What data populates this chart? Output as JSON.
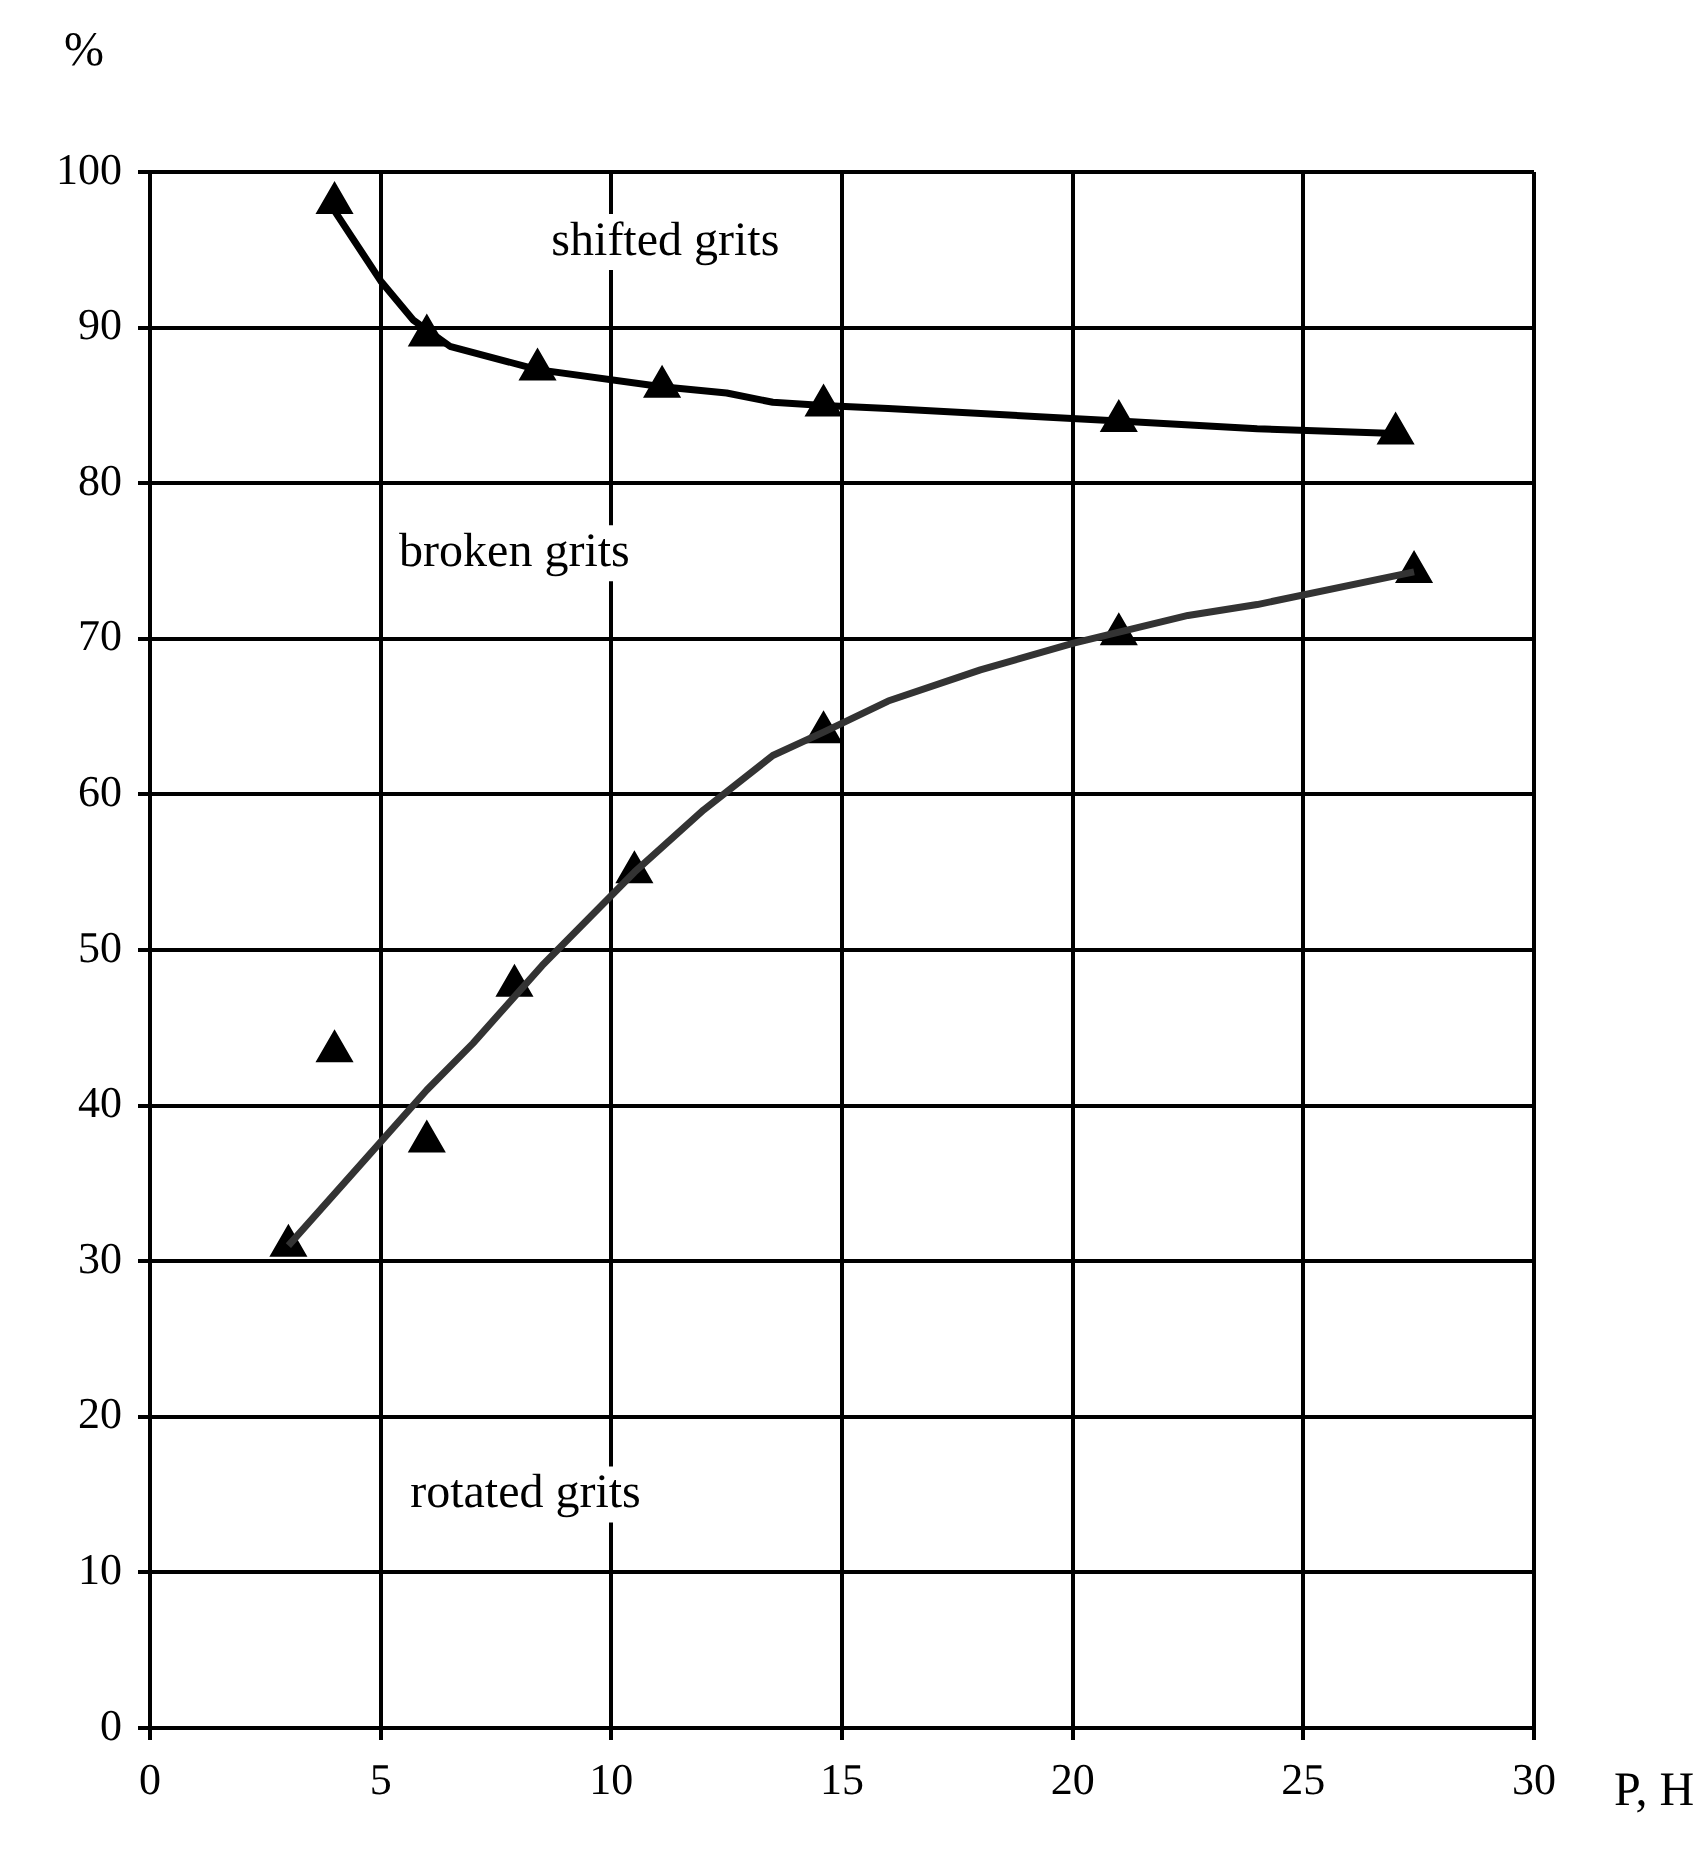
{
  "chart_data": {
    "type": "scatter",
    "xlabel": "P, H",
    "ylabel": "%",
    "xlim": [
      0,
      30
    ],
    "xticks": [
      0,
      5,
      10,
      15,
      20,
      25,
      30
    ],
    "ylim": [
      0,
      100
    ],
    "yticks": [
      0,
      10,
      20,
      30,
      40,
      50,
      60,
      70,
      80,
      90,
      100
    ],
    "grid": true,
    "legend": false,
    "marker": "triangle",
    "series": [
      {
        "type": "line",
        "marker": "none",
        "color": "#000000",
        "x": [
          4,
          5,
          5.7,
          6.5,
          8.4,
          11.1,
          12.5,
          13.5,
          14.6,
          16,
          21,
          24,
          27
        ],
        "values": [
          97.5,
          93,
          90.5,
          88.8,
          87.3,
          86.2,
          85.8,
          85.2,
          85,
          84.8,
          84,
          83.5,
          83.2
        ]
      },
      {
        "type": "line",
        "marker": "none",
        "color": "#333333",
        "x": [
          3,
          4.5,
          6,
          7,
          8.5,
          10.5,
          12,
          13.5,
          14.6,
          16,
          18,
          20,
          22.5,
          24,
          27.4
        ],
        "values": [
          31,
          36,
          41,
          44,
          49,
          55,
          59,
          62.5,
          64,
          66,
          68,
          69.7,
          71.5,
          72.2,
          74.3
        ]
      },
      {
        "color": "#000000",
        "x": [
          4,
          6,
          8.4,
          11.1,
          14.6,
          21,
          27
        ],
        "values": [
          98,
          89.5,
          87.3,
          86.2,
          85,
          84,
          83.2
        ]
      },
      {
        "color": "#000000",
        "x": [
          3,
          4,
          6,
          7.9,
          10.5,
          14.6,
          21,
          27.4
        ],
        "values": [
          31,
          43.5,
          37.7,
          47.7,
          55,
          64,
          70.3,
          74.3
        ]
      }
    ],
    "annotations": [
      "shifted grits",
      "broken grits",
      "rotated grits"
    ]
  }
}
